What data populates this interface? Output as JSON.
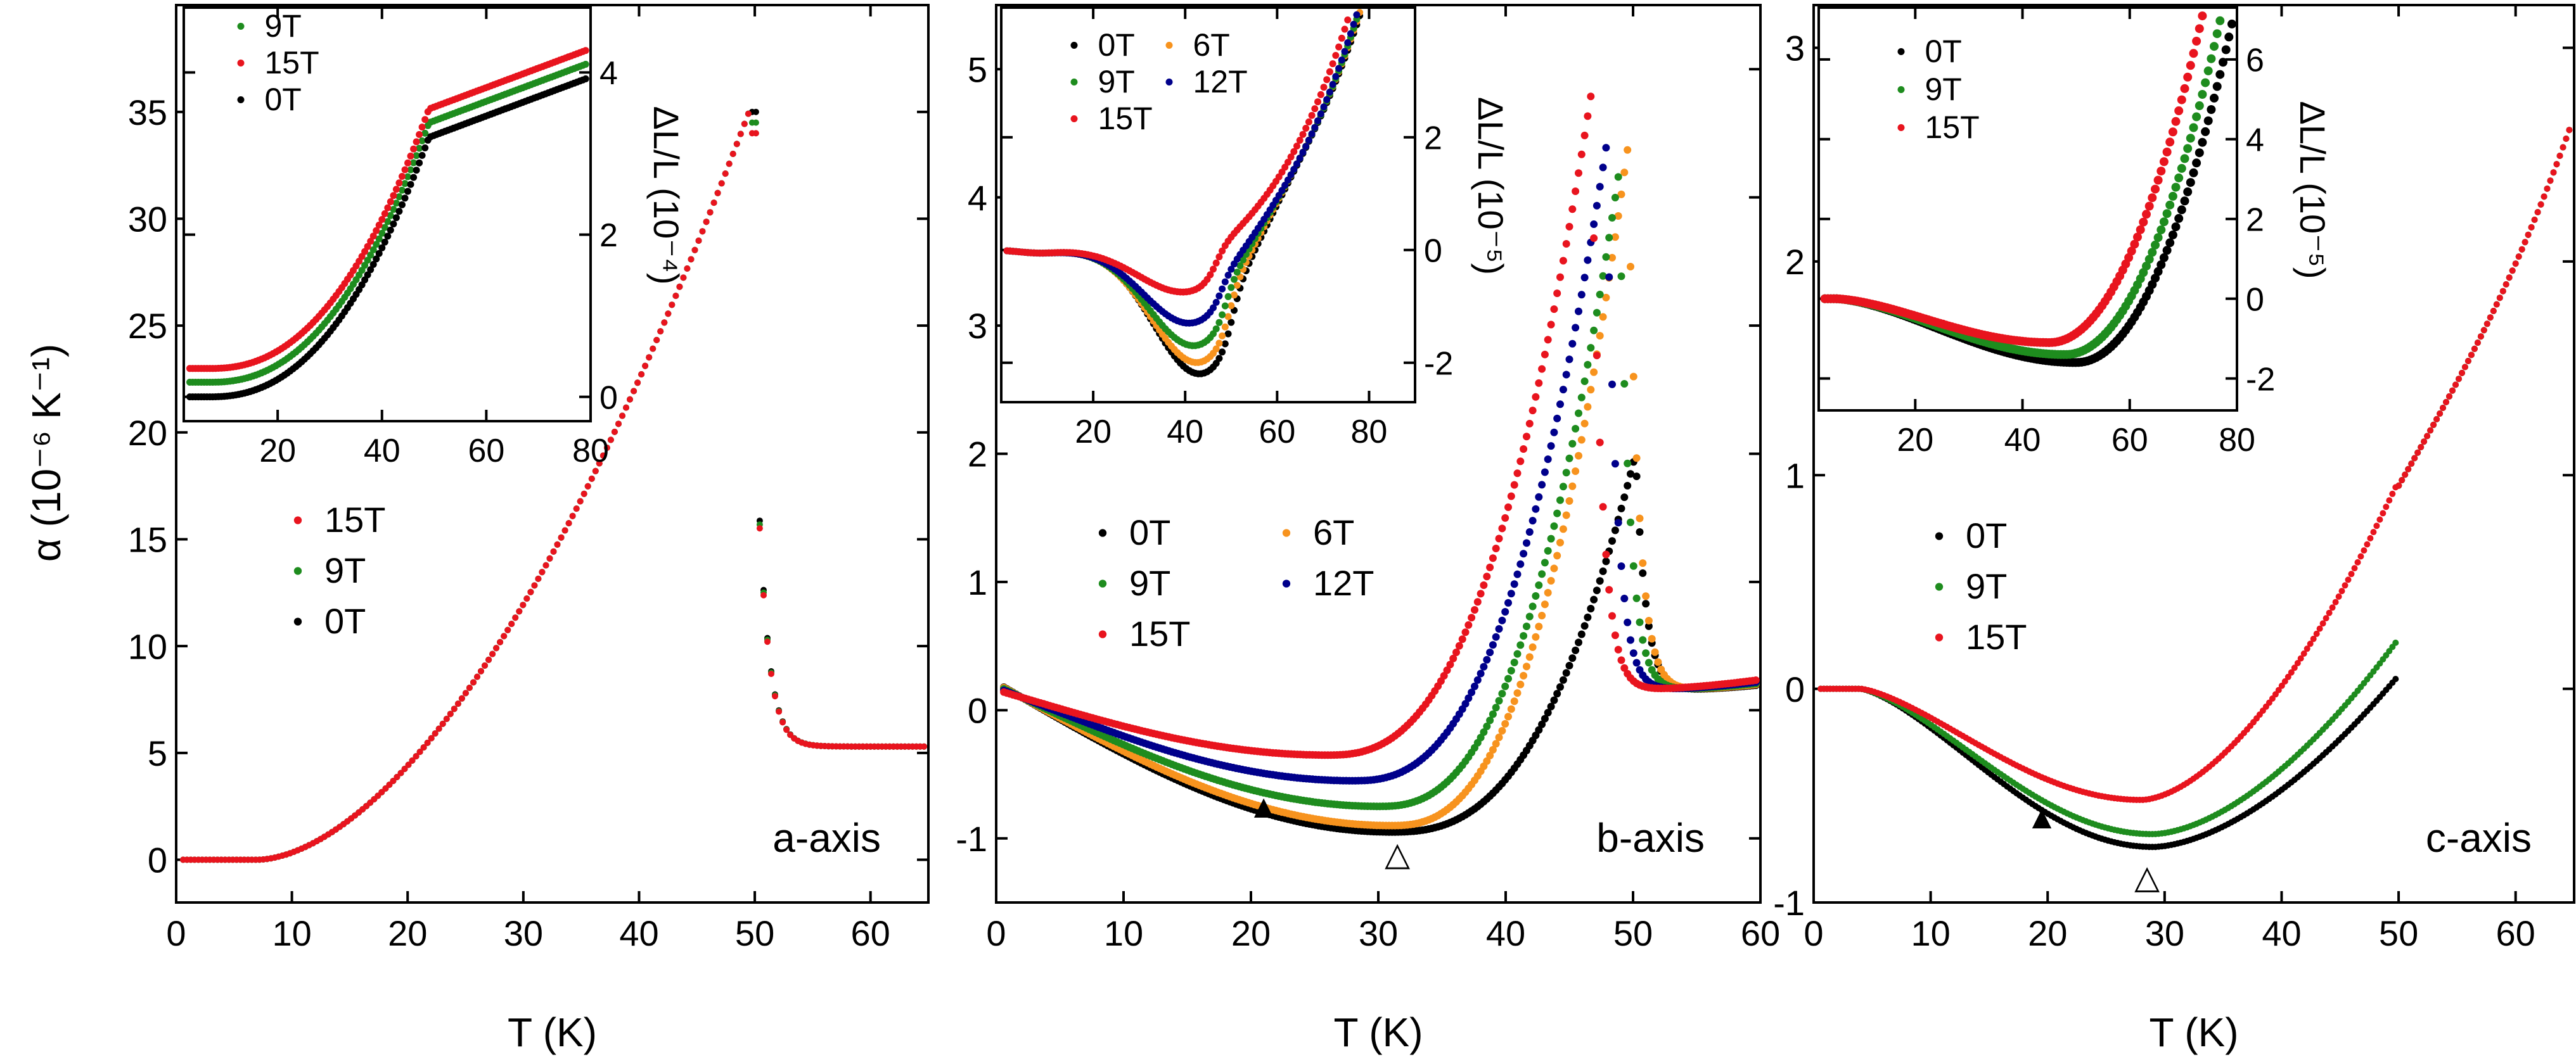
{
  "figure": {
    "ylabel_left": "α (10⁻⁶ K⁻¹)"
  },
  "colors": {
    "0T": "#000000",
    "6T": "#f7931e",
    "9T": "#1e8c1e",
    "12T": "#00008b",
    "15T": "#e8141e",
    "axis": "#000000"
  },
  "chart_data": [
    {
      "id": "a",
      "type": "scatter",
      "panel_label": "a-axis",
      "xlabel": "T (K)",
      "ylabel": "α (10⁻⁶ K⁻¹)",
      "xlim": [
        0,
        65
      ],
      "ylim": [
        -2,
        40
      ],
      "xticks": [
        0,
        10,
        20,
        30,
        40,
        50,
        60
      ],
      "yticks": [
        0,
        5,
        10,
        15,
        20,
        25,
        30,
        35
      ],
      "legend": [
        "15T",
        "9T",
        "0T"
      ],
      "legend_position": "center-left",
      "series": [
        {
          "name": "0T",
          "color": "#000000",
          "model": "a-alpha",
          "params": {
            "shift": 0,
            "peak": 35
          }
        },
        {
          "name": "9T",
          "color": "#1e8c1e",
          "model": "a-alpha",
          "params": {
            "shift": 0,
            "peak": 34.5
          }
        },
        {
          "name": "15T",
          "color": "#e8141e",
          "model": "a-alpha",
          "params": {
            "shift": 0,
            "peak": 34
          }
        }
      ],
      "inset": {
        "type": "scatter",
        "ylabel": "ΔL/L (10⁻⁴)",
        "xlim": [
          2,
          80
        ],
        "ylim": [
          -0.3,
          4.8
        ],
        "xticks": [
          20,
          40,
          60,
          80
        ],
        "yticks": [
          0,
          2,
          4
        ],
        "legend": [
          "9T",
          "15T",
          "0T"
        ],
        "legend_position": "top-left",
        "series": [
          {
            "name": "9T",
            "color": "#1e8c1e",
            "model": "a-dl",
            "params": {
              "off": 0.18
            }
          },
          {
            "name": "15T",
            "color": "#e8141e",
            "model": "a-dl",
            "params": {
              "off": 0.35
            }
          },
          {
            "name": "0T",
            "color": "#000000",
            "model": "a-dl",
            "params": {
              "off": 0.0
            }
          }
        ]
      }
    },
    {
      "id": "b",
      "type": "scatter",
      "panel_label": "b-axis",
      "xlabel": "T (K)",
      "ylabel": "",
      "xlim": [
        0,
        60
      ],
      "ylim": [
        -1.5,
        5.5
      ],
      "xticks": [
        0,
        10,
        20,
        30,
        40,
        50,
        60
      ],
      "yticks": [
        -1,
        0,
        1,
        2,
        3,
        4,
        5
      ],
      "legend": [
        "0T",
        "6T",
        "9T",
        "12T",
        "15T"
      ],
      "legend_position": "center-left",
      "annotations": [
        {
          "symbol": "▲",
          "x": 21,
          "y": -0.75,
          "filled": true
        },
        {
          "symbol": "△",
          "x": 31.5,
          "y": -1.12,
          "filled": false
        }
      ],
      "series": [
        {
          "name": "0T",
          "color": "#000000",
          "model": "b-alpha",
          "params": {
            "tc": 50.2,
            "peak": 2.0,
            "amin": -0.95,
            "tmin": 31
          }
        },
        {
          "name": "6T",
          "color": "#f7931e",
          "model": "b-alpha",
          "params": {
            "tc": 49.6,
            "peak": 4.4,
            "amin": -0.9,
            "tmin": 31
          }
        },
        {
          "name": "9T",
          "color": "#1e8c1e",
          "model": "b-alpha",
          "params": {
            "tc": 48.9,
            "peak": 4.2,
            "amin": -0.75,
            "tmin": 30
          }
        },
        {
          "name": "12T",
          "color": "#00008b",
          "model": "b-alpha",
          "params": {
            "tc": 47.9,
            "peak": 4.4,
            "amin": -0.55,
            "tmin": 28
          }
        },
        {
          "name": "15T",
          "color": "#e8141e",
          "model": "b-alpha",
          "params": {
            "tc": 46.7,
            "peak": 4.8,
            "amin": -0.35,
            "tmin": 26
          }
        }
      ],
      "inset": {
        "type": "scatter",
        "ylabel": "ΔL/L (10⁻⁵)",
        "xlim": [
          0,
          90
        ],
        "ylim": [
          -2.7,
          4.3
        ],
        "xticks": [
          20,
          40,
          60,
          80
        ],
        "yticks": [
          -2,
          0,
          2
        ],
        "legend": [
          "0T",
          "6T",
          "9T",
          "12T",
          "15T"
        ],
        "legend_position": "top-left",
        "series": [
          {
            "name": "0T",
            "color": "#000000",
            "model": "b-dl",
            "params": {
              "tc": 50.2,
              "depth": 2.2
            }
          },
          {
            "name": "6T",
            "color": "#f7931e",
            "model": "b-dl",
            "params": {
              "tc": 49.6,
              "depth": 2.0
            }
          },
          {
            "name": "9T",
            "color": "#1e8c1e",
            "model": "b-dl",
            "params": {
              "tc": 48.9,
              "depth": 1.7
            }
          },
          {
            "name": "12T",
            "color": "#00008b",
            "model": "b-dl",
            "params": {
              "tc": 47.9,
              "depth": 1.3
            }
          },
          {
            "name": "15T",
            "color": "#e8141e",
            "model": "b-dl",
            "params": {
              "tc": 46.7,
              "depth": 0.75
            }
          }
        ]
      }
    },
    {
      "id": "c",
      "type": "scatter",
      "panel_label": "c-axis",
      "xlabel": "T (K)",
      "ylabel": "",
      "xlim": [
        0,
        65
      ],
      "ylim": [
        -1,
        3.2
      ],
      "xticks": [
        0,
        10,
        20,
        30,
        40,
        50,
        60
      ],
      "yticks": [
        -1,
        0,
        1,
        2,
        3
      ],
      "legend": [
        "0T",
        "9T",
        "15T"
      ],
      "legend_position": "center-left",
      "annotations": [
        {
          "symbol": "▲",
          "x": 19.5,
          "y": -0.6,
          "filled": true
        },
        {
          "symbol": "△",
          "x": 28.5,
          "y": -0.88,
          "filled": false
        }
      ],
      "series": [
        {
          "name": "0T",
          "color": "#000000",
          "model": "c-alpha",
          "params": {
            "amin": -0.74,
            "tmin": 29,
            "pre": 0.05
          }
        },
        {
          "name": "9T",
          "color": "#1e8c1e",
          "model": "c-alpha",
          "params": {
            "amin": -0.68,
            "tmin": 29,
            "pre": 0.22
          }
        },
        {
          "name": "15T",
          "color": "#e8141e",
          "model": "c-alpha",
          "params": {
            "amin": -0.52,
            "tmin": 28,
            "pre": 0.95
          }
        }
      ],
      "inset": {
        "type": "scatter",
        "ylabel": "ΔL/L (10⁻⁵)",
        "xlim": [
          2,
          80
        ],
        "ylim": [
          -2.8,
          7.3
        ],
        "xticks": [
          20,
          40,
          60,
          80
        ],
        "yticks": [
          -2,
          0,
          2,
          4,
          6
        ],
        "legend": [
          "0T",
          "9T",
          "15T"
        ],
        "legend_position": "top-left",
        "series": [
          {
            "name": "0T",
            "color": "#000000",
            "model": "c-dl",
            "params": {
              "depth": 1.6,
              "tmin": 50
            }
          },
          {
            "name": "9T",
            "color": "#1e8c1e",
            "model": "c-dl",
            "params": {
              "depth": 1.4,
              "tmin": 48
            }
          },
          {
            "name": "15T",
            "color": "#e8141e",
            "model": "c-dl",
            "params": {
              "depth": 1.1,
              "tmin": 45
            }
          }
        ]
      }
    }
  ]
}
